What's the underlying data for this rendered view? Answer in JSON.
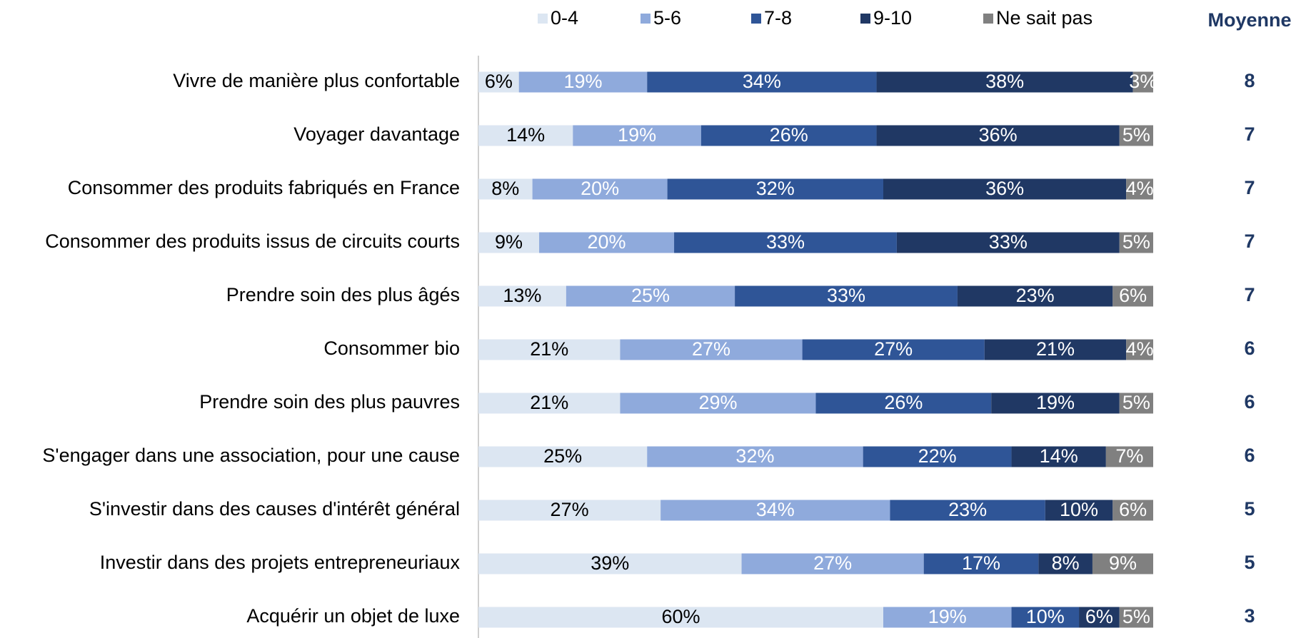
{
  "chart_data": {
    "type": "stacked_bar_horizontal",
    "categories": [
      "Vivre de manière plus confortable",
      "Voyager davantage",
      "Consommer des produits fabriqués en France",
      "Consommer des produits issus de circuits courts",
      "Prendre soin des plus âgés",
      "Consommer bio",
      "Prendre soin des plus pauvres",
      "S'engager dans une association, pour une cause",
      "S'investir dans des causes d'intérêt général",
      "Investir dans des projets entrepreneuriaux",
      "Acquérir un objet de luxe"
    ],
    "series": [
      {
        "name": "0-4",
        "color": "#dce6f2",
        "values": [
          6,
          14,
          8,
          9,
          13,
          21,
          21,
          25,
          27,
          39,
          60
        ],
        "value_labels": [
          "6%",
          "14%",
          "8%",
          "9%",
          "13%",
          "21%",
          "21%",
          "25%",
          "27%",
          "39%",
          "60%"
        ]
      },
      {
        "name": "5-6",
        "color": "#8faadc",
        "values": [
          19,
          19,
          20,
          20,
          25,
          27,
          29,
          32,
          34,
          27,
          19
        ],
        "value_labels": [
          "19%",
          "19%",
          "20%",
          "20%",
          "25%",
          "27%",
          "29%",
          "32%",
          "34%",
          "27%",
          "19%"
        ]
      },
      {
        "name": "7-8",
        "color": "#2f5597",
        "values": [
          34,
          26,
          32,
          33,
          33,
          27,
          26,
          22,
          23,
          17,
          10
        ],
        "value_labels": [
          "34%",
          "26%",
          "32%",
          "33%",
          "33%",
          "27%",
          "26%",
          "22%",
          "23%",
          "17%",
          "10%"
        ]
      },
      {
        "name": "9-10",
        "color": "#203864",
        "values": [
          38,
          36,
          36,
          33,
          23,
          21,
          19,
          14,
          10,
          8,
          6
        ],
        "value_labels": [
          "38%",
          "36%",
          "36%",
          "33%",
          "23%",
          "21%",
          "19%",
          "14%",
          "10%",
          "8%",
          "6%"
        ]
      },
      {
        "name": "Ne sait pas",
        "color": "#808080",
        "values": [
          3,
          5,
          4,
          5,
          6,
          4,
          5,
          7,
          6,
          9,
          5
        ],
        "value_labels": [
          "3%",
          "5%",
          "4%",
          "5%",
          "6%",
          "4%",
          "5%",
          "7%",
          "6%",
          "9%",
          "5%"
        ]
      }
    ],
    "xlim": [
      0,
      100
    ],
    "averages_label": "Moyenne",
    "averages": [
      8,
      7,
      7,
      7,
      7,
      6,
      6,
      6,
      5,
      5,
      3
    ]
  }
}
